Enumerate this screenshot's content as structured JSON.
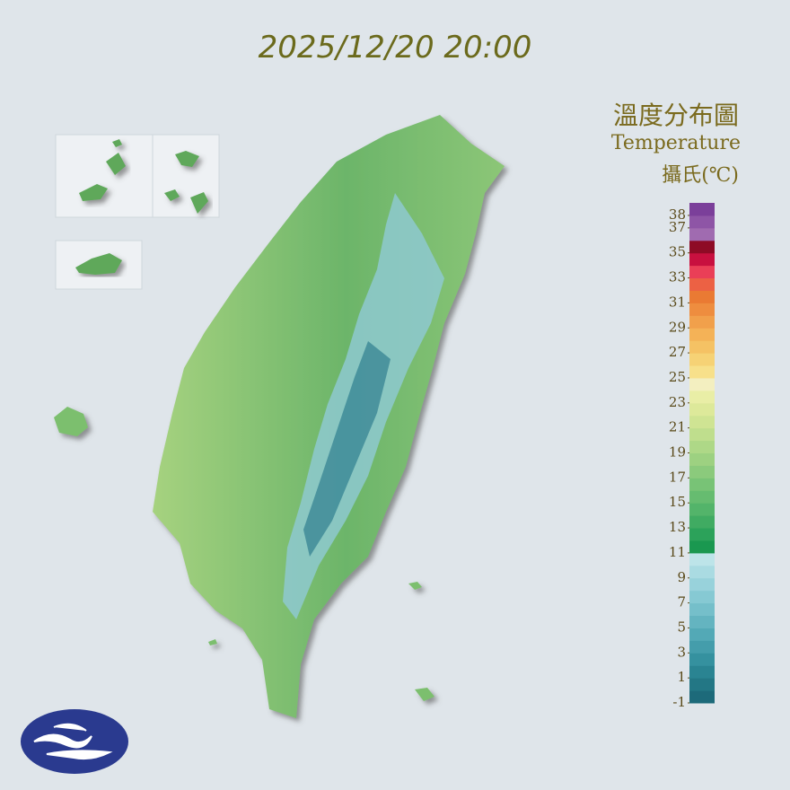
{
  "timestamp": "2025/12/20 20:00",
  "legend": {
    "title": "溫度分布圖",
    "subtitle": "Temperature",
    "unit": "攝氏(℃)",
    "range": [
      -1,
      39
    ],
    "ticks": [
      38,
      37,
      35,
      33,
      31,
      29,
      27,
      25,
      23,
      21,
      19,
      17,
      15,
      13,
      11,
      9,
      7,
      5,
      3,
      1,
      -1
    ],
    "colors": [
      "#1d6a7a",
      "#237785",
      "#2a8492",
      "#35919f",
      "#449dab",
      "#53a9b6",
      "#64b4c0",
      "#75bfca",
      "#86c9d3",
      "#98d2db",
      "#aadbe2",
      "#bde4e9",
      "#1a9850",
      "#2ca25a",
      "#40ab62",
      "#53b46a",
      "#66bc70",
      "#78c376",
      "#8bca7c",
      "#9dd181",
      "#aed887",
      "#bfde8d",
      "#cfe493",
      "#dde99a",
      "#e9eea6",
      "#f3efc0",
      "#f7e08a",
      "#f6d275",
      "#f5c264",
      "#f4b257",
      "#f1a04b",
      "#ee8d3f",
      "#ea7a33",
      "#ec6144",
      "#ea3f57",
      "#c8103f",
      "#8e0b25",
      "#a06bb0",
      "#8e55a6",
      "#7b3f9a"
    ]
  }
}
